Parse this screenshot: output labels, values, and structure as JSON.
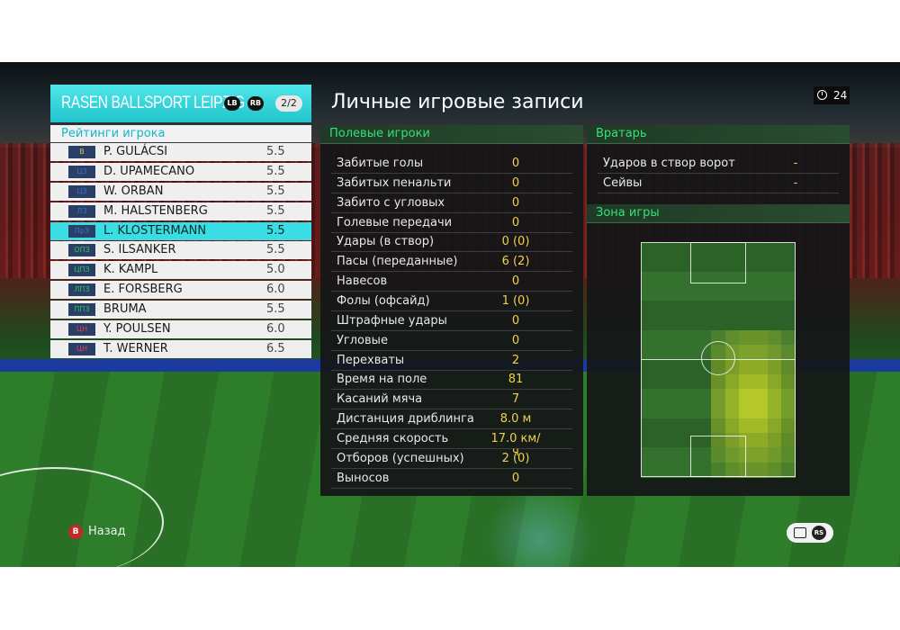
{
  "team": {
    "name": "RASEN BALLSPORT LEIPZIG",
    "lb": "LB",
    "rb": "RB",
    "page": "2/2"
  },
  "ratings_title": "Рейтинги игрока",
  "players": [
    {
      "pos": "В",
      "pos_color": "#d8c23a",
      "name": "P. GULÁCSI",
      "rating": "5.5"
    },
    {
      "pos": "ЦЗ",
      "pos_color": "#3a74c8",
      "name": "D. UPAMECANO",
      "rating": "5.5"
    },
    {
      "pos": "ЦЗ",
      "pos_color": "#3a74c8",
      "name": "W. ORBAN",
      "rating": "5.5"
    },
    {
      "pos": "ЛЗ",
      "pos_color": "#3a74c8",
      "name": "M. HALSTENBERG",
      "rating": "5.5"
    },
    {
      "pos": "ПрЗ",
      "pos_color": "#3a74c8",
      "name": "L. KLOSTERMANN",
      "rating": "5.5",
      "selected": true
    },
    {
      "pos": "ОПЗ",
      "pos_color": "#2fc458",
      "name": "S. ILSANKER",
      "rating": "5.5"
    },
    {
      "pos": "ЦПЗ",
      "pos_color": "#2fc458",
      "name": "K. KAMPL",
      "rating": "5.0"
    },
    {
      "pos": "ЛПЗ",
      "pos_color": "#2fc458",
      "name": "E. FORSBERG",
      "rating": "6.0"
    },
    {
      "pos": "ППЗ",
      "pos_color": "#2fc458",
      "name": "BRUMA",
      "rating": "5.5"
    },
    {
      "pos": "ЦН",
      "pos_color": "#e0445c",
      "name": "Y. POULSEN",
      "rating": "6.0"
    },
    {
      "pos": "ЦН",
      "pos_color": "#e0445c",
      "name": "T. WERNER",
      "rating": "6.5"
    }
  ],
  "main_title": "Личные игровые записи",
  "timer": "24",
  "field_players": {
    "header": "Полевые игроки",
    "rows": [
      {
        "label": "Забитые голы",
        "value": "0"
      },
      {
        "label": "Забитых пенальти",
        "value": "0"
      },
      {
        "label": "Забито с угловых",
        "value": "0"
      },
      {
        "label": "Голевые передачи",
        "value": "0"
      },
      {
        "label": "Удары (в створ)",
        "value": "0 (0)"
      },
      {
        "label": "Пасы (переданные)",
        "value": "6 (2)"
      },
      {
        "label": "Навесов",
        "value": "0"
      },
      {
        "label": "Фолы (офсайд)",
        "value": "1 (0)"
      },
      {
        "label": "Штрафные удары",
        "value": "0"
      },
      {
        "label": "Угловые",
        "value": "0"
      },
      {
        "label": "Перехваты",
        "value": "2"
      },
      {
        "label": "Время на поле",
        "value": "81"
      },
      {
        "label": "Касаний мяча",
        "value": "7"
      },
      {
        "label": "Дистанция дриблинга",
        "value": "8.0 м"
      },
      {
        "label": "Средняя скорость",
        "value": "17.0 км/ч"
      },
      {
        "label": "Отборов (успешных)",
        "value": "2 (0)"
      },
      {
        "label": "Выносов",
        "value": "0"
      }
    ]
  },
  "goalkeeper": {
    "header": "Вратарь",
    "rows": [
      {
        "label": "Ударов в створ ворот",
        "value": "-"
      },
      {
        "label": "Сейвы",
        "value": "-"
      }
    ]
  },
  "zone": {
    "header": "Зона игры"
  },
  "footer": {
    "back_key": "B",
    "back_label": "Назад",
    "rs_key": "RS"
  },
  "colors": {
    "accent": "#35e07a",
    "team_header": "#2fd3da",
    "value": "#f0d24a"
  }
}
